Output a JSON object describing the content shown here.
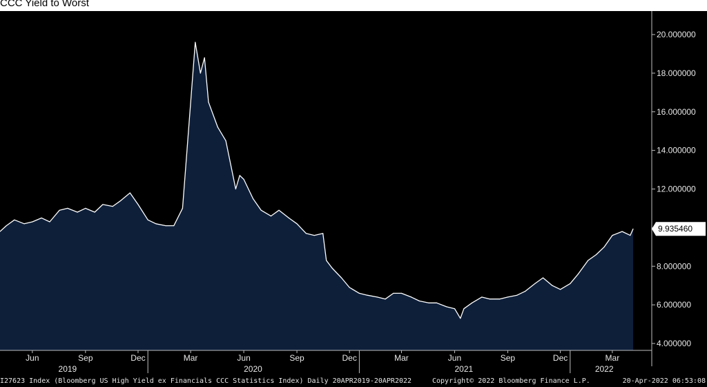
{
  "chart_data": {
    "type": "area",
    "title": "CCC Yield to Worst",
    "xlabel": "",
    "ylabel": "",
    "ylim": [
      4,
      21
    ],
    "xlim": [
      "2019-04-20",
      "2022-04-20"
    ],
    "y_ticks": [
      "4.000000",
      "6.000000",
      "8.000000",
      "10.000000",
      "12.000000",
      "14.000000",
      "16.000000",
      "18.000000",
      "20.000000"
    ],
    "month_ticks": [
      {
        "date": "2019-06-15",
        "label": "Jun"
      },
      {
        "date": "2019-09-15",
        "label": "Sep"
      },
      {
        "date": "2019-12-15",
        "label": "Dec"
      },
      {
        "date": "2020-03-15",
        "label": "Mar"
      },
      {
        "date": "2020-06-15",
        "label": "Jun"
      },
      {
        "date": "2020-09-15",
        "label": "Sep"
      },
      {
        "date": "2020-12-15",
        "label": "Dec"
      },
      {
        "date": "2021-03-15",
        "label": "Mar"
      },
      {
        "date": "2021-06-15",
        "label": "Jun"
      },
      {
        "date": "2021-09-15",
        "label": "Sep"
      },
      {
        "date": "2021-12-15",
        "label": "Dec"
      },
      {
        "date": "2022-03-15",
        "label": "Mar"
      }
    ],
    "year_ticks": [
      {
        "date": "2019-08-15",
        "label": "2019"
      },
      {
        "date": "2020-07-01",
        "label": "2020"
      },
      {
        "date": "2021-07-01",
        "label": "2021"
      },
      {
        "date": "2022-03-01",
        "label": "2022"
      }
    ],
    "year_separators": [
      "2020-01-01",
      "2021-01-01",
      "2022-01-01"
    ],
    "last_value": "9.935460",
    "series": [
      {
        "x": [
          "2019-04-20",
          "2019-05-01",
          "2019-05-15",
          "2019-06-01",
          "2019-06-15",
          "2019-07-01",
          "2019-07-15",
          "2019-08-01",
          "2019-08-15",
          "2019-09-01",
          "2019-09-15",
          "2019-10-01",
          "2019-10-15",
          "2019-11-01",
          "2019-11-15",
          "2019-12-01",
          "2019-12-15",
          "2020-01-01",
          "2020-01-15",
          "2020-02-01",
          "2020-02-15",
          "2020-03-01",
          "2020-03-10",
          "2020-03-23",
          "2020-04-01",
          "2020-04-08",
          "2020-04-15",
          "2020-05-01",
          "2020-05-15",
          "2020-06-01",
          "2020-06-08",
          "2020-06-15",
          "2020-07-01",
          "2020-07-15",
          "2020-08-01",
          "2020-08-15",
          "2020-09-01",
          "2020-09-15",
          "2020-10-01",
          "2020-10-15",
          "2020-10-30",
          "2020-11-05",
          "2020-11-15",
          "2020-12-01",
          "2020-12-15",
          "2021-01-01",
          "2021-01-15",
          "2021-02-01",
          "2021-02-15",
          "2021-03-01",
          "2021-03-15",
          "2021-04-01",
          "2021-04-15",
          "2021-05-01",
          "2021-05-15",
          "2021-06-01",
          "2021-06-15",
          "2021-06-25",
          "2021-07-01",
          "2021-07-15",
          "2021-08-01",
          "2021-08-15",
          "2021-09-01",
          "2021-09-15",
          "2021-10-01",
          "2021-10-15",
          "2021-11-01",
          "2021-11-15",
          "2021-12-01",
          "2021-12-15",
          "2022-01-01",
          "2022-01-15",
          "2022-02-01",
          "2022-02-15",
          "2022-03-01",
          "2022-03-15",
          "2022-04-01",
          "2022-04-15",
          "2022-04-20"
        ],
        "values": [
          9.8,
          10.1,
          10.4,
          10.2,
          10.3,
          10.5,
          10.3,
          10.9,
          11.0,
          10.8,
          11.0,
          10.8,
          11.2,
          11.1,
          11.4,
          11.8,
          11.2,
          10.4,
          10.2,
          10.1,
          10.1,
          11.0,
          14.5,
          19.6,
          18.0,
          18.8,
          16.5,
          15.2,
          14.5,
          12.0,
          12.7,
          12.5,
          11.5,
          10.9,
          10.6,
          10.9,
          10.5,
          10.2,
          9.7,
          9.6,
          9.7,
          8.3,
          7.9,
          7.4,
          6.9,
          6.6,
          6.5,
          6.4,
          6.3,
          6.6,
          6.6,
          6.4,
          6.2,
          6.1,
          6.1,
          5.9,
          5.8,
          5.3,
          5.8,
          6.1,
          6.4,
          6.3,
          6.3,
          6.4,
          6.5,
          6.7,
          7.1,
          7.4,
          7.0,
          6.8,
          7.1,
          7.6,
          8.3,
          8.6,
          9.0,
          9.6,
          9.8,
          9.6,
          9.935
        ]
      }
    ],
    "colors": {
      "background": "#000000",
      "fill": "#0e1f3a",
      "line": "#ffffff",
      "axis": "#bfbfbf"
    },
    "grid": false
  },
  "footer": {
    "index": "I27623 Index (Bloomberg US High Yield ex Financials CCC Statistics Index) Daily 20APR2019-20APR2022",
    "copyright": "Copyright© 2022 Bloomberg Finance L.P.",
    "timestamp": "20-Apr-2022 06:53:08"
  }
}
